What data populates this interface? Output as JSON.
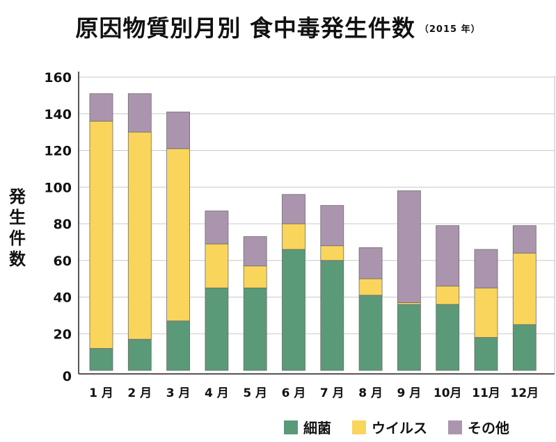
{
  "chart_data": {
    "type": "bar",
    "stacked": true,
    "title": "原因物質別月別 食中毒発生件数",
    "subtitle": "（2015 年）",
    "ylabel": "発生件数",
    "xlabel": "",
    "ylim": [
      0,
      160
    ],
    "yticks": [
      0,
      20,
      40,
      60,
      80,
      100,
      120,
      140,
      160
    ],
    "grid": true,
    "legend_position": "bottom-right",
    "categories": [
      "1 月",
      "2 月",
      "3 月",
      "4 月",
      "5 月",
      "6 月",
      "7 月",
      "8 月",
      "9 月",
      "10月",
      "11月",
      "12月"
    ],
    "series": [
      {
        "name": "細菌",
        "color": "#5a9a78",
        "values": [
          12,
          17,
          27,
          45,
          45,
          66,
          60,
          41,
          36,
          36,
          18,
          25
        ]
      },
      {
        "name": "ウイルス",
        "color": "#fad55c",
        "values": [
          124,
          113,
          94,
          24,
          12,
          14,
          8,
          9,
          1,
          10,
          27,
          39
        ]
      },
      {
        "name": "その他",
        "color": "#ab95ae",
        "values": [
          15,
          21,
          20,
          18,
          16,
          16,
          22,
          17,
          61,
          33,
          21,
          15
        ]
      }
    ]
  }
}
